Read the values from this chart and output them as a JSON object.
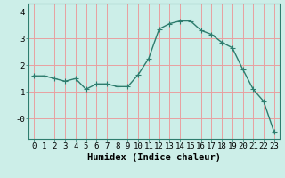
{
  "x": [
    0,
    1,
    2,
    3,
    4,
    5,
    6,
    7,
    8,
    9,
    10,
    11,
    12,
    13,
    14,
    15,
    16,
    17,
    18,
    19,
    20,
    21,
    22,
    23
  ],
  "y": [
    1.6,
    1.6,
    1.5,
    1.4,
    1.5,
    1.1,
    1.3,
    1.3,
    1.2,
    1.2,
    1.65,
    2.25,
    3.35,
    3.55,
    3.65,
    3.65,
    3.3,
    3.15,
    2.85,
    2.65,
    1.85,
    1.1,
    0.65,
    -0.5
  ],
  "line_color": "#2e7d6e",
  "marker": "+",
  "markersize": 4,
  "linewidth": 1.0,
  "xlabel": "Humidex (Indice chaleur)",
  "ylabel": "",
  "xlim": [
    -0.5,
    23.5
  ],
  "ylim": [
    -0.75,
    4.3
  ],
  "yticks": [
    0,
    1,
    2,
    3,
    4
  ],
  "ytick_labels": [
    "-0",
    "1",
    "2",
    "3",
    "4"
  ],
  "xtick_labels": [
    "0",
    "1",
    "2",
    "3",
    "4",
    "5",
    "6",
    "7",
    "8",
    "9",
    "10",
    "11",
    "12",
    "13",
    "14",
    "15",
    "16",
    "17",
    "18",
    "19",
    "20",
    "21",
    "22",
    "23"
  ],
  "bg_color": "#cceee8",
  "grid_color": "#e8a0a0",
  "xlabel_fontsize": 7.5,
  "tick_fontsize": 6.5
}
